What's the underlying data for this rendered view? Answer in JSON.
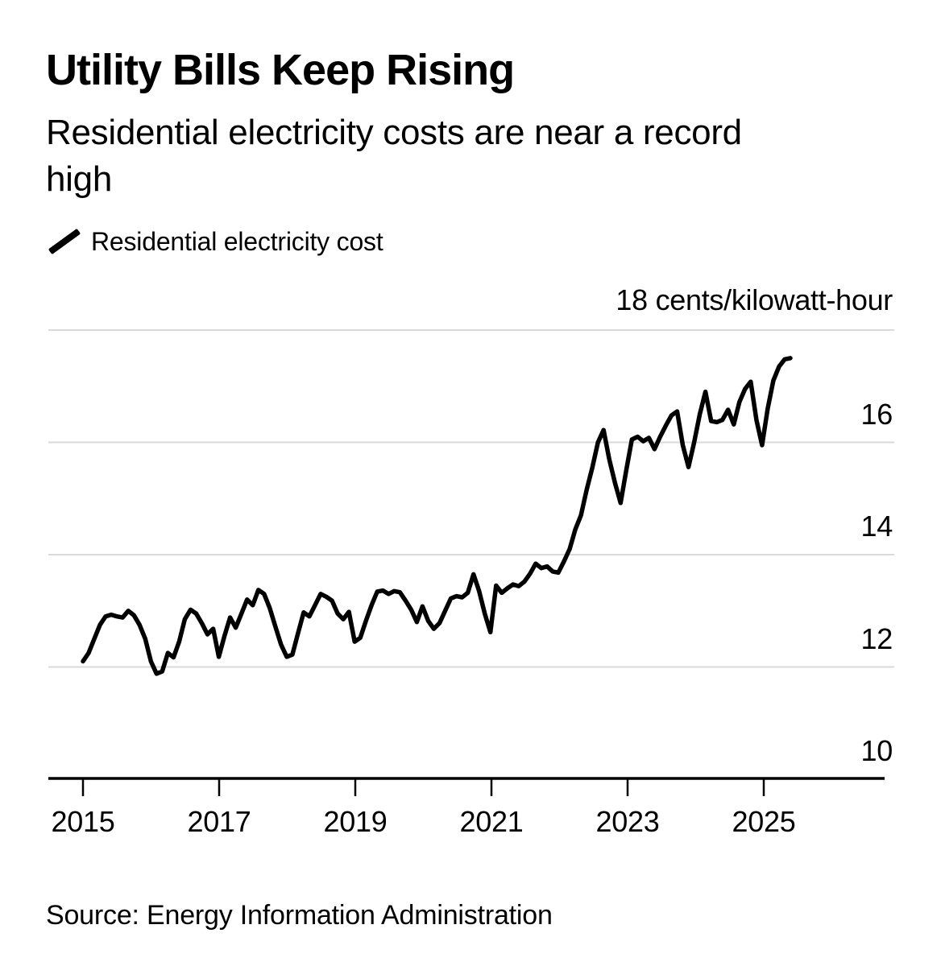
{
  "header": {
    "title": "Utility Bills Keep Rising",
    "subtitle": "Residential electricity costs are near a record high"
  },
  "legend": {
    "label": "Residential electricity cost",
    "marker": "diagonal-line-swatch"
  },
  "footer": {
    "source": "Source: Energy Information Administration"
  },
  "chart_data": {
    "type": "line",
    "title": "Utility Bills Keep Rising",
    "subtitle": "Residential electricity costs are near a record high",
    "unit_label": "18 cents/kilowatt-hour",
    "ylabel": "cents/kilowatt-hour",
    "ylim": [
      10,
      18
    ],
    "y_gridline_values": [
      18,
      16,
      14,
      12
    ],
    "y_tick_labels": [
      "16",
      "14",
      "12",
      "10"
    ],
    "y_axis_baseline_value": 10,
    "x_tick_labels": [
      "2015",
      "2017",
      "2019",
      "2021",
      "2023",
      "2025"
    ],
    "x_tick_years": [
      2015,
      2017,
      2019,
      2021,
      2023,
      2025
    ],
    "x_start": "2015-01",
    "x_end": "2025-06",
    "x_frequency": "monthly",
    "grid": true,
    "legend_position": "top-left",
    "line_color": "#000000",
    "gridline_color": "#d9d9d9",
    "series": [
      {
        "name": "Residential electricity cost",
        "values": [
          12.1,
          12.25,
          12.5,
          12.75,
          12.9,
          12.93,
          12.9,
          12.88,
          13.0,
          12.92,
          12.75,
          12.5,
          12.1,
          11.88,
          11.92,
          12.25,
          12.17,
          12.45,
          12.85,
          13.02,
          12.95,
          12.78,
          12.58,
          12.68,
          12.18,
          12.55,
          12.88,
          12.7,
          12.95,
          13.2,
          13.1,
          13.37,
          13.3,
          13.05,
          12.72,
          12.4,
          12.18,
          12.22,
          12.6,
          12.97,
          12.9,
          13.1,
          13.3,
          13.25,
          13.18,
          12.95,
          12.85,
          12.98,
          12.45,
          12.52,
          12.82,
          13.1,
          13.34,
          13.36,
          13.3,
          13.35,
          13.33,
          13.18,
          13.02,
          12.8,
          13.08,
          12.82,
          12.68,
          12.78,
          13.0,
          13.22,
          13.26,
          13.24,
          13.32,
          13.65,
          13.35,
          12.95,
          12.62,
          13.45,
          13.32,
          13.4,
          13.47,
          13.44,
          13.52,
          13.66,
          13.84,
          13.76,
          13.79,
          13.7,
          13.68,
          13.88,
          14.1,
          14.45,
          14.7,
          15.15,
          15.55,
          16.0,
          16.22,
          15.7,
          15.28,
          14.92,
          15.5,
          16.05,
          16.1,
          16.02,
          16.08,
          15.88,
          16.1,
          16.3,
          16.48,
          16.55,
          15.95,
          15.56,
          16.0,
          16.5,
          16.9,
          16.38,
          16.36,
          16.4,
          16.58,
          16.32,
          16.72,
          16.95,
          17.08,
          16.4,
          15.95,
          16.6,
          17.1,
          17.35,
          17.48,
          17.5
        ]
      }
    ]
  }
}
